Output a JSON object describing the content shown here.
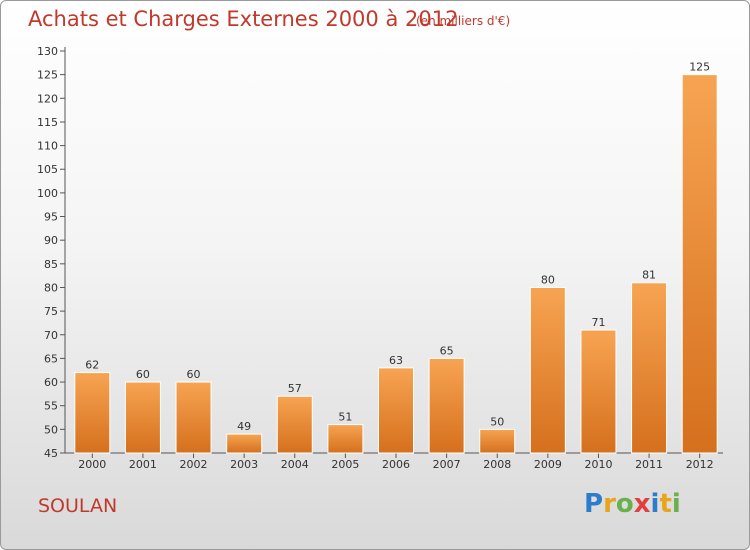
{
  "header": {
    "title": "Achats et Charges Externes 2000 à 2012",
    "subtitle": "(en milliers d'€)"
  },
  "footer": {
    "commune": "SOULAN",
    "logo_letters": [
      "P",
      "r",
      "o",
      "x",
      "i",
      "t",
      "i"
    ]
  },
  "colors": {
    "title": "#c0392b",
    "bar_light": "#f6a04d",
    "bar_dark": "#d97320"
  },
  "chart_data": {
    "type": "bar",
    "title": "Achats et Charges Externes 2000 à 2012",
    "xlabel": "",
    "ylabel": "",
    "ylim": [
      45,
      130
    ],
    "yticks": [
      45,
      50,
      55,
      60,
      65,
      70,
      75,
      80,
      85,
      90,
      95,
      100,
      105,
      110,
      115,
      120,
      125,
      130
    ],
    "grid": false,
    "categories": [
      "2000",
      "2001",
      "2002",
      "2003",
      "2004",
      "2005",
      "2006",
      "2007",
      "2008",
      "2009",
      "2010",
      "2011",
      "2012"
    ],
    "values": [
      62,
      60,
      60,
      49,
      57,
      51,
      63,
      65,
      50,
      80,
      71,
      81,
      125
    ]
  }
}
